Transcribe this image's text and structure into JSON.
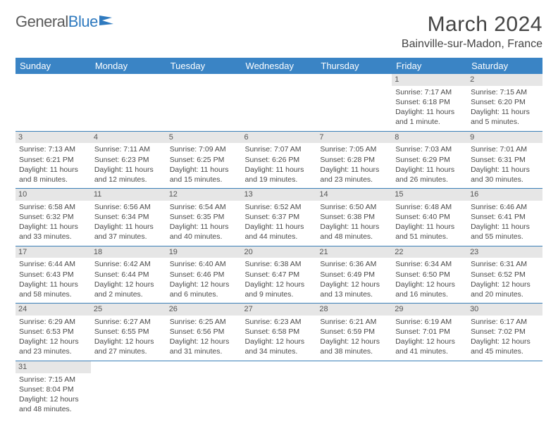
{
  "logo": {
    "text1": "General",
    "text2": "Blue"
  },
  "title": "March 2024",
  "location": "Bainville-sur-Madon, France",
  "colors": {
    "header_bg": "#3a84c5",
    "header_text": "#ffffff",
    "daynum_bg": "#e6e6e6",
    "border": "#3a7fb8",
    "body_text": "#4a4a4a",
    "logo_gray": "#5a5a5a",
    "logo_blue": "#2f7abf"
  },
  "weekdays": [
    "Sunday",
    "Monday",
    "Tuesday",
    "Wednesday",
    "Thursday",
    "Friday",
    "Saturday"
  ],
  "weeks": [
    [
      null,
      null,
      null,
      null,
      null,
      {
        "n": "1",
        "sr": "Sunrise: 7:17 AM",
        "ss": "Sunset: 6:18 PM",
        "dl1": "Daylight: 11 hours",
        "dl2": "and 1 minute."
      },
      {
        "n": "2",
        "sr": "Sunrise: 7:15 AM",
        "ss": "Sunset: 6:20 PM",
        "dl1": "Daylight: 11 hours",
        "dl2": "and 5 minutes."
      }
    ],
    [
      {
        "n": "3",
        "sr": "Sunrise: 7:13 AM",
        "ss": "Sunset: 6:21 PM",
        "dl1": "Daylight: 11 hours",
        "dl2": "and 8 minutes."
      },
      {
        "n": "4",
        "sr": "Sunrise: 7:11 AM",
        "ss": "Sunset: 6:23 PM",
        "dl1": "Daylight: 11 hours",
        "dl2": "and 12 minutes."
      },
      {
        "n": "5",
        "sr": "Sunrise: 7:09 AM",
        "ss": "Sunset: 6:25 PM",
        "dl1": "Daylight: 11 hours",
        "dl2": "and 15 minutes."
      },
      {
        "n": "6",
        "sr": "Sunrise: 7:07 AM",
        "ss": "Sunset: 6:26 PM",
        "dl1": "Daylight: 11 hours",
        "dl2": "and 19 minutes."
      },
      {
        "n": "7",
        "sr": "Sunrise: 7:05 AM",
        "ss": "Sunset: 6:28 PM",
        "dl1": "Daylight: 11 hours",
        "dl2": "and 23 minutes."
      },
      {
        "n": "8",
        "sr": "Sunrise: 7:03 AM",
        "ss": "Sunset: 6:29 PM",
        "dl1": "Daylight: 11 hours",
        "dl2": "and 26 minutes."
      },
      {
        "n": "9",
        "sr": "Sunrise: 7:01 AM",
        "ss": "Sunset: 6:31 PM",
        "dl1": "Daylight: 11 hours",
        "dl2": "and 30 minutes."
      }
    ],
    [
      {
        "n": "10",
        "sr": "Sunrise: 6:58 AM",
        "ss": "Sunset: 6:32 PM",
        "dl1": "Daylight: 11 hours",
        "dl2": "and 33 minutes."
      },
      {
        "n": "11",
        "sr": "Sunrise: 6:56 AM",
        "ss": "Sunset: 6:34 PM",
        "dl1": "Daylight: 11 hours",
        "dl2": "and 37 minutes."
      },
      {
        "n": "12",
        "sr": "Sunrise: 6:54 AM",
        "ss": "Sunset: 6:35 PM",
        "dl1": "Daylight: 11 hours",
        "dl2": "and 40 minutes."
      },
      {
        "n": "13",
        "sr": "Sunrise: 6:52 AM",
        "ss": "Sunset: 6:37 PM",
        "dl1": "Daylight: 11 hours",
        "dl2": "and 44 minutes."
      },
      {
        "n": "14",
        "sr": "Sunrise: 6:50 AM",
        "ss": "Sunset: 6:38 PM",
        "dl1": "Daylight: 11 hours",
        "dl2": "and 48 minutes."
      },
      {
        "n": "15",
        "sr": "Sunrise: 6:48 AM",
        "ss": "Sunset: 6:40 PM",
        "dl1": "Daylight: 11 hours",
        "dl2": "and 51 minutes."
      },
      {
        "n": "16",
        "sr": "Sunrise: 6:46 AM",
        "ss": "Sunset: 6:41 PM",
        "dl1": "Daylight: 11 hours",
        "dl2": "and 55 minutes."
      }
    ],
    [
      {
        "n": "17",
        "sr": "Sunrise: 6:44 AM",
        "ss": "Sunset: 6:43 PM",
        "dl1": "Daylight: 11 hours",
        "dl2": "and 58 minutes."
      },
      {
        "n": "18",
        "sr": "Sunrise: 6:42 AM",
        "ss": "Sunset: 6:44 PM",
        "dl1": "Daylight: 12 hours",
        "dl2": "and 2 minutes."
      },
      {
        "n": "19",
        "sr": "Sunrise: 6:40 AM",
        "ss": "Sunset: 6:46 PM",
        "dl1": "Daylight: 12 hours",
        "dl2": "and 6 minutes."
      },
      {
        "n": "20",
        "sr": "Sunrise: 6:38 AM",
        "ss": "Sunset: 6:47 PM",
        "dl1": "Daylight: 12 hours",
        "dl2": "and 9 minutes."
      },
      {
        "n": "21",
        "sr": "Sunrise: 6:36 AM",
        "ss": "Sunset: 6:49 PM",
        "dl1": "Daylight: 12 hours",
        "dl2": "and 13 minutes."
      },
      {
        "n": "22",
        "sr": "Sunrise: 6:34 AM",
        "ss": "Sunset: 6:50 PM",
        "dl1": "Daylight: 12 hours",
        "dl2": "and 16 minutes."
      },
      {
        "n": "23",
        "sr": "Sunrise: 6:31 AM",
        "ss": "Sunset: 6:52 PM",
        "dl1": "Daylight: 12 hours",
        "dl2": "and 20 minutes."
      }
    ],
    [
      {
        "n": "24",
        "sr": "Sunrise: 6:29 AM",
        "ss": "Sunset: 6:53 PM",
        "dl1": "Daylight: 12 hours",
        "dl2": "and 23 minutes."
      },
      {
        "n": "25",
        "sr": "Sunrise: 6:27 AM",
        "ss": "Sunset: 6:55 PM",
        "dl1": "Daylight: 12 hours",
        "dl2": "and 27 minutes."
      },
      {
        "n": "26",
        "sr": "Sunrise: 6:25 AM",
        "ss": "Sunset: 6:56 PM",
        "dl1": "Daylight: 12 hours",
        "dl2": "and 31 minutes."
      },
      {
        "n": "27",
        "sr": "Sunrise: 6:23 AM",
        "ss": "Sunset: 6:58 PM",
        "dl1": "Daylight: 12 hours",
        "dl2": "and 34 minutes."
      },
      {
        "n": "28",
        "sr": "Sunrise: 6:21 AM",
        "ss": "Sunset: 6:59 PM",
        "dl1": "Daylight: 12 hours",
        "dl2": "and 38 minutes."
      },
      {
        "n": "29",
        "sr": "Sunrise: 6:19 AM",
        "ss": "Sunset: 7:01 PM",
        "dl1": "Daylight: 12 hours",
        "dl2": "and 41 minutes."
      },
      {
        "n": "30",
        "sr": "Sunrise: 6:17 AM",
        "ss": "Sunset: 7:02 PM",
        "dl1": "Daylight: 12 hours",
        "dl2": "and 45 minutes."
      }
    ],
    [
      {
        "n": "31",
        "sr": "Sunrise: 7:15 AM",
        "ss": "Sunset: 8:04 PM",
        "dl1": "Daylight: 12 hours",
        "dl2": "and 48 minutes."
      },
      null,
      null,
      null,
      null,
      null,
      null
    ]
  ]
}
